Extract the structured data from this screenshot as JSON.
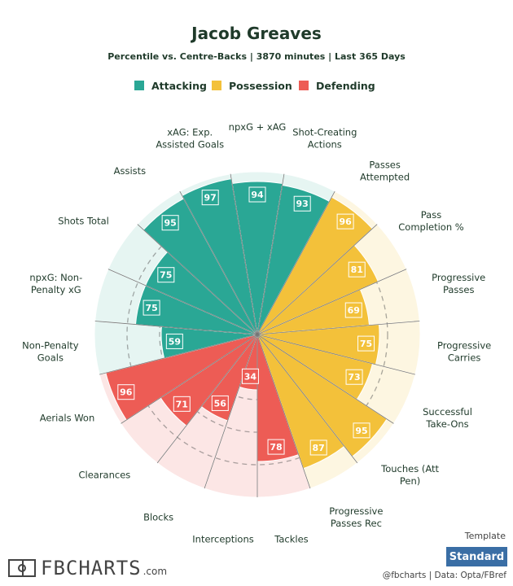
{
  "header": {
    "title": "Jacob Greaves",
    "subtitle": "Percentile vs. Centre-Backs | 3870 minutes | Last 365 Days"
  },
  "legend": [
    {
      "name": "Attacking",
      "color": "#2aa795"
    },
    {
      "name": "Possession",
      "color": "#f3c13a"
    },
    {
      "name": "Defending",
      "color": "#ed5c55"
    }
  ],
  "chart_data": {
    "type": "polar-bar",
    "title": "Jacob Greaves",
    "subtitle": "Percentile vs. Centre-Backs | 3870 minutes | Last 365 Days",
    "rlim": [
      0,
      100
    ],
    "categories": [
      {
        "label": [
          "npxG + xAG"
        ],
        "value": 94,
        "group": "Attacking"
      },
      {
        "label": [
          "Shot-Creating",
          "Actions"
        ],
        "value": 93,
        "group": "Attacking"
      },
      {
        "label": [
          "Passes",
          "Attempted"
        ],
        "value": 96,
        "group": "Possession"
      },
      {
        "label": [
          "Pass",
          "Completion %"
        ],
        "value": 81,
        "group": "Possession"
      },
      {
        "label": [
          "Progressive",
          "Passes"
        ],
        "value": 69,
        "group": "Possession"
      },
      {
        "label": [
          "Progressive",
          "Carries"
        ],
        "value": 75,
        "group": "Possession"
      },
      {
        "label": [
          "Successful",
          "Take-Ons"
        ],
        "value": 73,
        "group": "Possession"
      },
      {
        "label": [
          "Touches (Att",
          "Pen)"
        ],
        "value": 95,
        "group": "Possession"
      },
      {
        "label": [
          "Progressive",
          "Passes Rec"
        ],
        "value": 87,
        "group": "Possession"
      },
      {
        "label": [
          "Tackles"
        ],
        "value": 78,
        "group": "Defending"
      },
      {
        "label": [
          "Interceptions"
        ],
        "value": 34,
        "group": "Defending"
      },
      {
        "label": [
          "Blocks"
        ],
        "value": 56,
        "group": "Defending"
      },
      {
        "label": [
          "Clearances"
        ],
        "value": 71,
        "group": "Defending"
      },
      {
        "label": [
          "Aerials Won"
        ],
        "value": 96,
        "group": "Defending"
      },
      {
        "label": [
          "Non-Penalty",
          "Goals"
        ],
        "value": 59,
        "group": "Attacking"
      },
      {
        "label": [
          "npxG: Non-",
          "Penalty xG"
        ],
        "value": 75,
        "group": "Attacking"
      },
      {
        "label": [
          "Shots Total"
        ],
        "value": 75,
        "group": "Attacking"
      },
      {
        "label": [
          "Assists"
        ],
        "value": 95,
        "group": "Attacking"
      },
      {
        "label": [
          "xAG: Exp.",
          "Assisted Goals"
        ],
        "value": 97,
        "group": "Attacking"
      }
    ]
  },
  "footer": {
    "brand": "FBCHARTS",
    "brand_suffix": ".com",
    "template_label": "Template",
    "template_button": "Standard",
    "credits": "@fbcharts | Data: Opta/FBref"
  }
}
